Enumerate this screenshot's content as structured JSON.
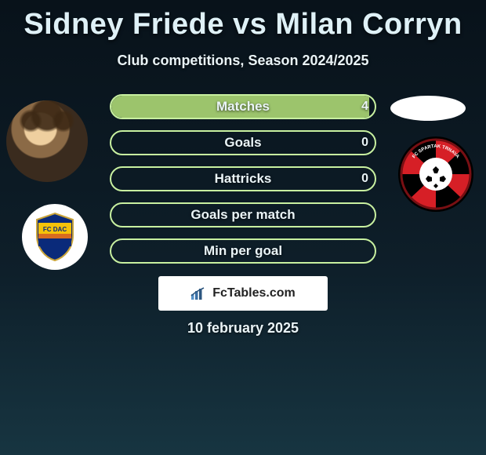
{
  "title": "Sidney Friede vs Milan Corryn",
  "subtitle": "Club competitions, Season 2024/2025",
  "date": "10 february 2025",
  "watermark": {
    "text": "FcTables.com"
  },
  "palette": {
    "bar_border": "#c8f0a0",
    "bar_fill_left": "#9cc46c",
    "text": "#eaf4f7"
  },
  "bars": [
    {
      "label": "Matches",
      "left_value": "4",
      "left_pct": 98,
      "right_pct": 0
    },
    {
      "label": "Goals",
      "left_value": "0",
      "left_pct": 0,
      "right_pct": 0
    },
    {
      "label": "Hattricks",
      "left_value": "0",
      "left_pct": 0,
      "right_pct": 0
    },
    {
      "label": "Goals per match",
      "left_value": "",
      "left_pct": 0,
      "right_pct": 0
    },
    {
      "label": "Min per goal",
      "left_value": "",
      "left_pct": 0,
      "right_pct": 0
    }
  ],
  "left_team": {
    "name": "FC DAC 1904",
    "shield_colors": {
      "top": "#0a2a7a",
      "mid": "#f5c20a",
      "bottom": "#0a2a7a"
    }
  },
  "right_team": {
    "name": "FC Spartak Trnava",
    "ring_colors": [
      "#d61f26",
      "#000000"
    ]
  }
}
